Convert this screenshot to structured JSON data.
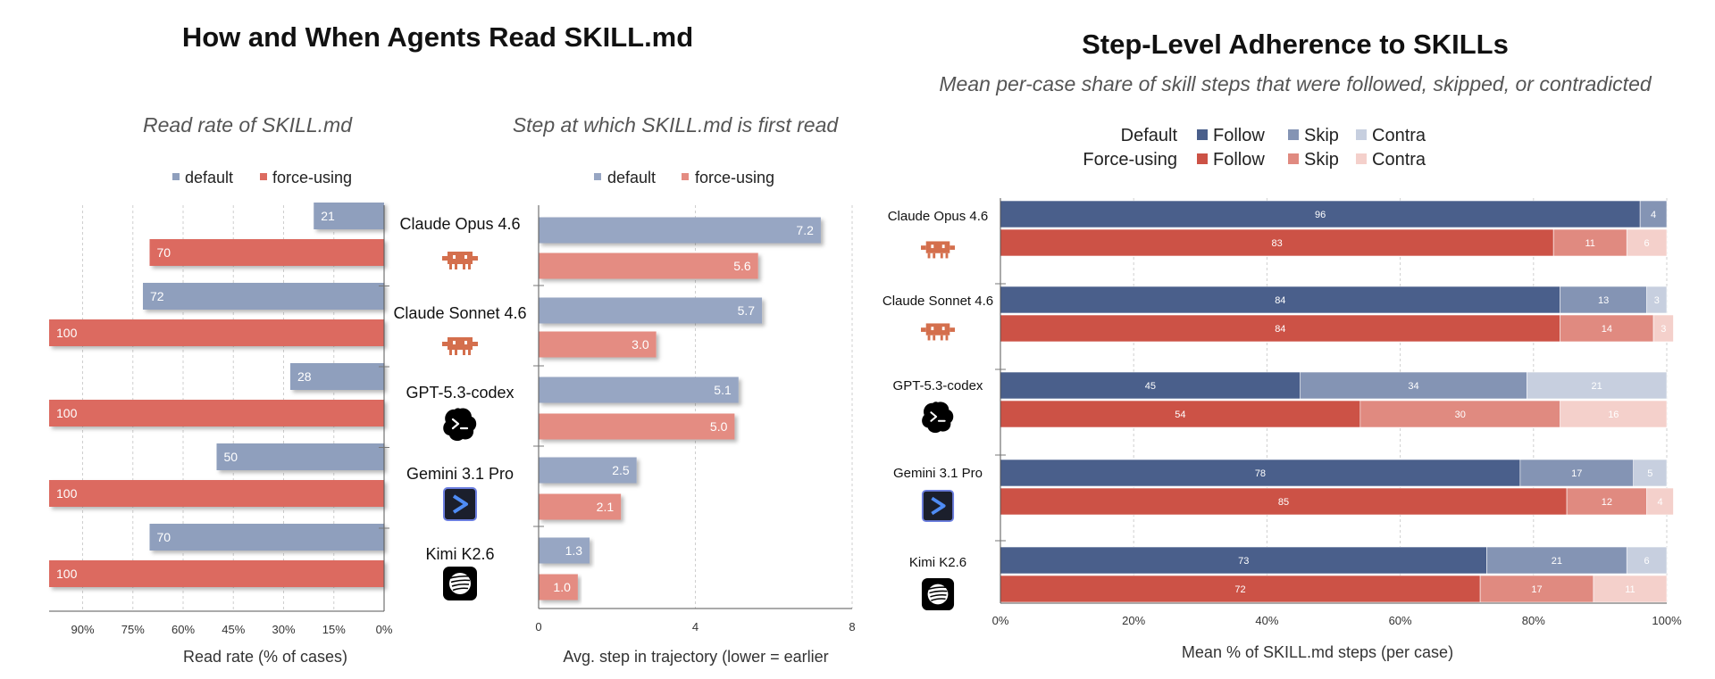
{
  "left_title": "How and When Agents Read SKILL.md",
  "right_title": "Step-Level Adherence to SKILLs",
  "right_subtitle": "Mean per-case share of skill steps that were followed, skipped, or contradicted",
  "colors": {
    "default": "#8f9fbd",
    "force": "#dc6b60",
    "default_step": "#97a6c3",
    "force_step": "#e48c82",
    "def_follow": "#4a5f8b",
    "def_skip": "#8494b4",
    "def_contra": "#c7cfdf",
    "frc_follow": "#cc5246",
    "frc_skip": "#e08a80",
    "frc_contra": "#f4d0cb"
  },
  "models": [
    {
      "name": "Claude Opus 4.6",
      "icon": "claude-mascot-icon"
    },
    {
      "name": "Claude Sonnet 4.6",
      "icon": "claude-mascot-icon"
    },
    {
      "name": "GPT-5.3-codex",
      "icon": "openai-codex-icon"
    },
    {
      "name": "Gemini 3.1 Pro",
      "icon": "gemini-cli-icon"
    },
    {
      "name": "Kimi K2.6",
      "icon": "kimi-logo-icon"
    }
  ],
  "chart_data": [
    {
      "type": "bar",
      "orientation": "horizontal",
      "title": "Read rate of SKILL.md",
      "xlabel": "Read rate  (% of cases)",
      "xlim": [
        100,
        0
      ],
      "xticks": [
        "90%",
        "75%",
        "60%",
        "45%",
        "30%",
        "15%",
        "0%"
      ],
      "xtick_values": [
        90,
        75,
        60,
        45,
        30,
        15,
        0
      ],
      "grid": "vertical dashed",
      "legend_position": "top",
      "categories": [
        "Claude Opus 4.6",
        "Claude Sonnet 4.6",
        "GPT-5.3-codex",
        "Gemini 3.1 Pro",
        "Kimi K2.6"
      ],
      "series": [
        {
          "name": "default",
          "values": [
            21,
            72,
            28,
            50,
            70
          ]
        },
        {
          "name": "force-using",
          "values": [
            70,
            100,
            100,
            100,
            100
          ]
        }
      ]
    },
    {
      "type": "bar",
      "orientation": "horizontal",
      "title": "Step at which SKILL.md is first read",
      "xlabel": "Avg. step in trajectory  (lower = earlier",
      "xlim": [
        0,
        8
      ],
      "xticks": [
        "0",
        "4",
        "8"
      ],
      "xtick_values": [
        0,
        4,
        8
      ],
      "grid": "vertical dashed",
      "legend_position": "top",
      "categories": [
        "Claude Opus 4.6",
        "Claude Sonnet 4.6",
        "GPT-5.3-codex",
        "Gemini 3.1 Pro",
        "Kimi K2.6"
      ],
      "series": [
        {
          "name": "default",
          "values": [
            7.2,
            5.7,
            5.1,
            2.5,
            1.3
          ],
          "labels": [
            "7.2",
            "5.7",
            "5.1",
            "2.5",
            "1.3"
          ]
        },
        {
          "name": "force-using",
          "values": [
            5.6,
            3.0,
            5.0,
            2.1,
            1.0
          ],
          "labels": [
            "5.6",
            "3.0",
            "5.0",
            "2.1",
            "1.0"
          ]
        }
      ]
    },
    {
      "type": "bar",
      "orientation": "horizontal",
      "stacked": true,
      "title": "Step-Level Adherence to SKILLs",
      "subtitle": "Mean per-case share of skill steps that were followed, skipped, or contradicted",
      "xlabel": "Mean % of SKILL.md steps (per case)",
      "xlim": [
        0,
        100
      ],
      "xticks": [
        "0%",
        "20%",
        "40%",
        "60%",
        "80%",
        "100%"
      ],
      "xtick_values": [
        0,
        20,
        40,
        60,
        80,
        100
      ],
      "grid": "vertical dashed",
      "legend_position": "top",
      "legend_groups": [
        "Default",
        "Force-using"
      ],
      "stack_labels": [
        "Follow",
        "Skip",
        "Contra"
      ],
      "categories": [
        "Claude Opus 4.6",
        "Claude Sonnet 4.6",
        "GPT-5.3-codex",
        "Gemini 3.1 Pro",
        "Kimi K2.6"
      ],
      "default": [
        [
          96,
          4,
          0
        ],
        [
          84,
          13,
          3
        ],
        [
          45,
          34,
          21
        ],
        [
          78,
          17,
          5
        ],
        [
          73,
          21,
          6
        ]
      ],
      "force_using": [
        [
          83,
          11,
          6
        ],
        [
          84,
          14,
          3
        ],
        [
          54,
          30,
          16
        ],
        [
          85,
          12,
          4
        ],
        [
          72,
          17,
          11
        ]
      ]
    }
  ]
}
